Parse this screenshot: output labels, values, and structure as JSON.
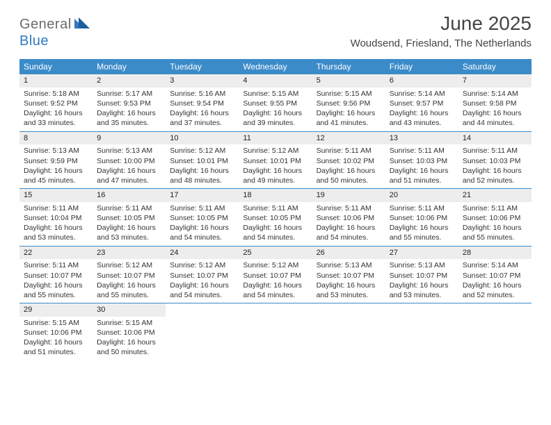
{
  "logo": {
    "general": "General",
    "blue": "Blue"
  },
  "title": "June 2025",
  "location": "Woudsend, Friesland, The Netherlands",
  "colors": {
    "header_bg": "#3b8bc9",
    "header_text": "#ffffff",
    "daynum_bg": "#ededed",
    "border": "#3b8bc9",
    "text": "#333333",
    "logo_gray": "#6b6b6b",
    "logo_blue": "#2f7bbf"
  },
  "weekday_labels": [
    "Sunday",
    "Monday",
    "Tuesday",
    "Wednesday",
    "Thursday",
    "Friday",
    "Saturday"
  ],
  "weeks": [
    [
      {
        "num": "1",
        "sunrise": "Sunrise: 5:18 AM",
        "sunset": "Sunset: 9:52 PM",
        "daylight": "Daylight: 16 hours and 33 minutes."
      },
      {
        "num": "2",
        "sunrise": "Sunrise: 5:17 AM",
        "sunset": "Sunset: 9:53 PM",
        "daylight": "Daylight: 16 hours and 35 minutes."
      },
      {
        "num": "3",
        "sunrise": "Sunrise: 5:16 AM",
        "sunset": "Sunset: 9:54 PM",
        "daylight": "Daylight: 16 hours and 37 minutes."
      },
      {
        "num": "4",
        "sunrise": "Sunrise: 5:15 AM",
        "sunset": "Sunset: 9:55 PM",
        "daylight": "Daylight: 16 hours and 39 minutes."
      },
      {
        "num": "5",
        "sunrise": "Sunrise: 5:15 AM",
        "sunset": "Sunset: 9:56 PM",
        "daylight": "Daylight: 16 hours and 41 minutes."
      },
      {
        "num": "6",
        "sunrise": "Sunrise: 5:14 AM",
        "sunset": "Sunset: 9:57 PM",
        "daylight": "Daylight: 16 hours and 43 minutes."
      },
      {
        "num": "7",
        "sunrise": "Sunrise: 5:14 AM",
        "sunset": "Sunset: 9:58 PM",
        "daylight": "Daylight: 16 hours and 44 minutes."
      }
    ],
    [
      {
        "num": "8",
        "sunrise": "Sunrise: 5:13 AM",
        "sunset": "Sunset: 9:59 PM",
        "daylight": "Daylight: 16 hours and 45 minutes."
      },
      {
        "num": "9",
        "sunrise": "Sunrise: 5:13 AM",
        "sunset": "Sunset: 10:00 PM",
        "daylight": "Daylight: 16 hours and 47 minutes."
      },
      {
        "num": "10",
        "sunrise": "Sunrise: 5:12 AM",
        "sunset": "Sunset: 10:01 PM",
        "daylight": "Daylight: 16 hours and 48 minutes."
      },
      {
        "num": "11",
        "sunrise": "Sunrise: 5:12 AM",
        "sunset": "Sunset: 10:01 PM",
        "daylight": "Daylight: 16 hours and 49 minutes."
      },
      {
        "num": "12",
        "sunrise": "Sunrise: 5:11 AM",
        "sunset": "Sunset: 10:02 PM",
        "daylight": "Daylight: 16 hours and 50 minutes."
      },
      {
        "num": "13",
        "sunrise": "Sunrise: 5:11 AM",
        "sunset": "Sunset: 10:03 PM",
        "daylight": "Daylight: 16 hours and 51 minutes."
      },
      {
        "num": "14",
        "sunrise": "Sunrise: 5:11 AM",
        "sunset": "Sunset: 10:03 PM",
        "daylight": "Daylight: 16 hours and 52 minutes."
      }
    ],
    [
      {
        "num": "15",
        "sunrise": "Sunrise: 5:11 AM",
        "sunset": "Sunset: 10:04 PM",
        "daylight": "Daylight: 16 hours and 53 minutes."
      },
      {
        "num": "16",
        "sunrise": "Sunrise: 5:11 AM",
        "sunset": "Sunset: 10:05 PM",
        "daylight": "Daylight: 16 hours and 53 minutes."
      },
      {
        "num": "17",
        "sunrise": "Sunrise: 5:11 AM",
        "sunset": "Sunset: 10:05 PM",
        "daylight": "Daylight: 16 hours and 54 minutes."
      },
      {
        "num": "18",
        "sunrise": "Sunrise: 5:11 AM",
        "sunset": "Sunset: 10:05 PM",
        "daylight": "Daylight: 16 hours and 54 minutes."
      },
      {
        "num": "19",
        "sunrise": "Sunrise: 5:11 AM",
        "sunset": "Sunset: 10:06 PM",
        "daylight": "Daylight: 16 hours and 54 minutes."
      },
      {
        "num": "20",
        "sunrise": "Sunrise: 5:11 AM",
        "sunset": "Sunset: 10:06 PM",
        "daylight": "Daylight: 16 hours and 55 minutes."
      },
      {
        "num": "21",
        "sunrise": "Sunrise: 5:11 AM",
        "sunset": "Sunset: 10:06 PM",
        "daylight": "Daylight: 16 hours and 55 minutes."
      }
    ],
    [
      {
        "num": "22",
        "sunrise": "Sunrise: 5:11 AM",
        "sunset": "Sunset: 10:07 PM",
        "daylight": "Daylight: 16 hours and 55 minutes."
      },
      {
        "num": "23",
        "sunrise": "Sunrise: 5:12 AM",
        "sunset": "Sunset: 10:07 PM",
        "daylight": "Daylight: 16 hours and 55 minutes."
      },
      {
        "num": "24",
        "sunrise": "Sunrise: 5:12 AM",
        "sunset": "Sunset: 10:07 PM",
        "daylight": "Daylight: 16 hours and 54 minutes."
      },
      {
        "num": "25",
        "sunrise": "Sunrise: 5:12 AM",
        "sunset": "Sunset: 10:07 PM",
        "daylight": "Daylight: 16 hours and 54 minutes."
      },
      {
        "num": "26",
        "sunrise": "Sunrise: 5:13 AM",
        "sunset": "Sunset: 10:07 PM",
        "daylight": "Daylight: 16 hours and 53 minutes."
      },
      {
        "num": "27",
        "sunrise": "Sunrise: 5:13 AM",
        "sunset": "Sunset: 10:07 PM",
        "daylight": "Daylight: 16 hours and 53 minutes."
      },
      {
        "num": "28",
        "sunrise": "Sunrise: 5:14 AM",
        "sunset": "Sunset: 10:07 PM",
        "daylight": "Daylight: 16 hours and 52 minutes."
      }
    ],
    [
      {
        "num": "29",
        "sunrise": "Sunrise: 5:15 AM",
        "sunset": "Sunset: 10:06 PM",
        "daylight": "Daylight: 16 hours and 51 minutes."
      },
      {
        "num": "30",
        "sunrise": "Sunrise: 5:15 AM",
        "sunset": "Sunset: 10:06 PM",
        "daylight": "Daylight: 16 hours and 50 minutes."
      },
      null,
      null,
      null,
      null,
      null
    ]
  ]
}
